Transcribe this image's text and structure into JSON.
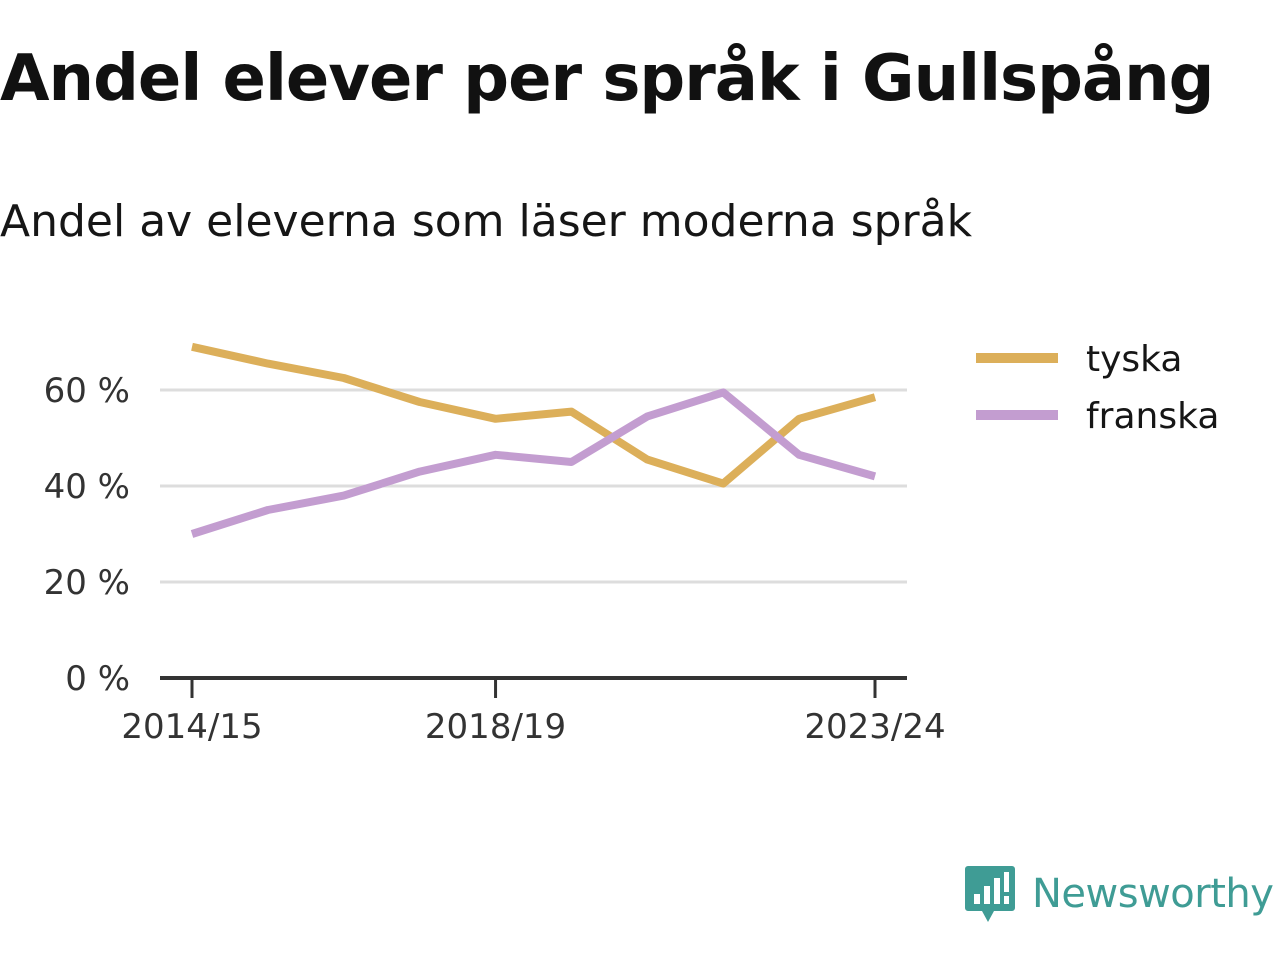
{
  "header": {
    "title": "Andel elever per språk i Gullspång",
    "subtitle": "Andel av eleverna som läser moderna språk"
  },
  "brand": {
    "name": "Newsworthy",
    "icon": "newsworthy-logo-icon",
    "color": "#3f9c95"
  },
  "chart_data": {
    "type": "line",
    "x": [
      "2014/15",
      "2015/16",
      "2016/17",
      "2017/18",
      "2018/19",
      "2019/20",
      "2020/21",
      "2021/22",
      "2022/23",
      "2023/24"
    ],
    "x_tick_labels": [
      "2014/15",
      "2018/19",
      "2023/24"
    ],
    "y_ticks": [
      0,
      20,
      40,
      60
    ],
    "y_tick_labels": [
      "0 %",
      "20 %",
      "40 %",
      "60 %"
    ],
    "ylim": [
      0,
      72
    ],
    "grid": true,
    "legend_position": "top-right",
    "series": [
      {
        "name": "tyska",
        "color": "#dcaf5a",
        "values": [
          69,
          65.5,
          62.5,
          57.5,
          54,
          55.5,
          45.5,
          40.5,
          54,
          58.5
        ]
      },
      {
        "name": "franska",
        "color": "#c39dd0",
        "values": [
          30,
          35,
          38,
          43,
          46.5,
          45,
          54.5,
          59.5,
          46.5,
          42
        ]
      }
    ]
  }
}
